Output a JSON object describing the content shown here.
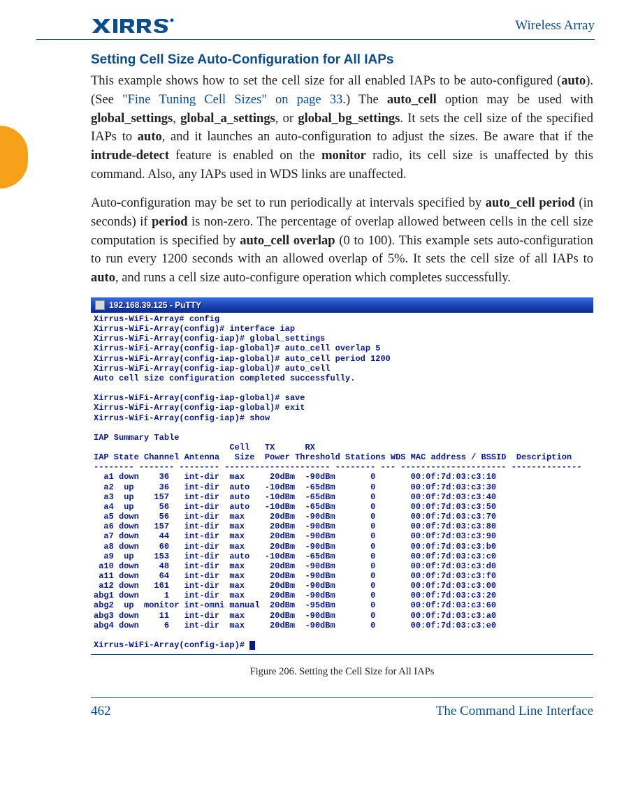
{
  "header": {
    "brand": "XIRRUS",
    "doc_title": "Wireless Array"
  },
  "section": {
    "heading": "Setting Cell Size Auto-Configuration for All IAPs",
    "para1_a": "This example shows how to set the cell size for all enabled IAPs to be auto-configured (",
    "para1_b": "). (See ",
    "para1_link": "\"Fine Tuning Cell Sizes\" on page 33",
    "para1_c": ".) The ",
    "para1_d": " option may be used with ",
    "para1_e": ", ",
    "para1_f": ", or ",
    "para1_g": ". It sets the cell size of the specified IAPs to ",
    "para1_h": ", and it launches an auto-configuration to adjust the sizes. Be aware that if the ",
    "para1_i": " feature is enabled on the ",
    "para1_j": " radio, its cell size is unaffected by this command. Also, any IAPs used in WDS links are unaffected.",
    "bold_auto": "auto",
    "bold_auto_cell": "auto_cell",
    "bold_global": "global_settings",
    "bold_global_a": "global_a_settings",
    "bold_global_bg": "global_bg_settings",
    "bold_intrude": "intrude-detect",
    "bold_monitor": "monitor",
    "para2_a": "Auto-configuration may be set to run periodically at intervals specified by ",
    "para2_b": " (in seconds) if ",
    "para2_c": " is non-zero. The percentage of overlap allowed between cells in the cell size computation is specified by ",
    "para2_d": " (0 to 100). This example sets auto-configuration to run every 1200 seconds with an allowed overlap of 5%. It sets the cell size of all IAPs to ",
    "para2_e": ", and runs a cell size auto-configure operation which completes successfully.",
    "bold_period_full": "auto_cell period",
    "bold_period": "period",
    "bold_overlap": "auto_cell overlap"
  },
  "terminal": {
    "title": "192.168.39.125 - PuTTY",
    "lines_pre": [
      "Xirrus-WiFi-Array# config",
      "Xirrus-WiFi-Array(config)# interface iap",
      "Xirrus-WiFi-Array(config-iap)# global_settings",
      "Xirrus-WiFi-Array(config-iap-global)# auto_cell overlap 5",
      "Xirrus-WiFi-Array(config-iap-global)# auto_cell period 1200",
      "Xirrus-WiFi-Array(config-iap-global)# auto_cell",
      "Auto cell size configuration completed successfully.",
      "",
      "Xirrus-WiFi-Array(config-iap-global)# save",
      "Xirrus-WiFi-Array(config-iap-global)# exit",
      "Xirrus-WiFi-Array(config-iap)# show",
      "",
      "IAP Summary Table",
      "                           Cell   TX      RX",
      "IAP State Channel Antenna   Size  Power Threshold Stations WDS MAC address / BSSID  Description",
      "-------- ------- -------- --------------------- -------- --- --------------------- --------------"
    ],
    "table_rows": [
      {
        "iap": "  a1",
        "state": "down",
        "ch": "   36",
        "ant": "  int-dir",
        "size": " max ",
        "tx": "   20dBm",
        "rx": " -90dBm",
        "st": "      0",
        "mac": "      00:0f:7d:03:c3:10"
      },
      {
        "iap": "  a2",
        "state": " up ",
        "ch": "   36",
        "ant": "  int-dir",
        "size": " auto",
        "tx": "  -10dBm",
        "rx": " -65dBm",
        "st": "      0",
        "mac": "      00:0f:7d:03:c3:30"
      },
      {
        "iap": "  a3",
        "state": " up ",
        "ch": "  157",
        "ant": "  int-dir",
        "size": " auto",
        "tx": "  -10dBm",
        "rx": " -65dBm",
        "st": "      0",
        "mac": "      00:0f:7d:03:c3:40"
      },
      {
        "iap": "  a4",
        "state": " up ",
        "ch": "   56",
        "ant": "  int-dir",
        "size": " auto",
        "tx": "  -10dBm",
        "rx": " -65dBm",
        "st": "      0",
        "mac": "      00:0f:7d:03:c3:50"
      },
      {
        "iap": "  a5",
        "state": "down",
        "ch": "   56",
        "ant": "  int-dir",
        "size": " max ",
        "tx": "   20dBm",
        "rx": " -90dBm",
        "st": "      0",
        "mac": "      00:0f:7d:03:c3:70"
      },
      {
        "iap": "  a6",
        "state": "down",
        "ch": "  157",
        "ant": "  int-dir",
        "size": " max ",
        "tx": "   20dBm",
        "rx": " -90dBm",
        "st": "      0",
        "mac": "      00:0f:7d:03:c3:80"
      },
      {
        "iap": "  a7",
        "state": "down",
        "ch": "   44",
        "ant": "  int-dir",
        "size": " max ",
        "tx": "   20dBm",
        "rx": " -90dBm",
        "st": "      0",
        "mac": "      00:0f:7d:03:c3:90"
      },
      {
        "iap": "  a8",
        "state": "down",
        "ch": "   60",
        "ant": "  int-dir",
        "size": " max ",
        "tx": "   20dBm",
        "rx": " -90dBm",
        "st": "      0",
        "mac": "      00:0f:7d:03:c3:b0"
      },
      {
        "iap": "  a9",
        "state": " up ",
        "ch": "  153",
        "ant": "  int-dir",
        "size": " auto",
        "tx": "  -10dBm",
        "rx": " -65dBm",
        "st": "      0",
        "mac": "      00:0f:7d:03:c3:c0"
      },
      {
        "iap": " a10",
        "state": "down",
        "ch": "   48",
        "ant": "  int-dir",
        "size": " max ",
        "tx": "   20dBm",
        "rx": " -90dBm",
        "st": "      0",
        "mac": "      00:0f:7d:03:c3:d0"
      },
      {
        "iap": " a11",
        "state": "down",
        "ch": "   64",
        "ant": "  int-dir",
        "size": " max ",
        "tx": "   20dBm",
        "rx": " -90dBm",
        "st": "      0",
        "mac": "      00:0f:7d:03:c3:f0"
      },
      {
        "iap": " a12",
        "state": "down",
        "ch": "  161",
        "ant": "  int-dir",
        "size": " max ",
        "tx": "   20dBm",
        "rx": " -90dBm",
        "st": "      0",
        "mac": "      00:0f:7d:03:c3:00"
      },
      {
        "iap": "abg1",
        "state": "down",
        "ch": "    1",
        "ant": "  int-dir",
        "size": " max ",
        "tx": "   20dBm",
        "rx": " -90dBm",
        "st": "      0",
        "mac": "      00:0f:7d:03:c3:20"
      },
      {
        "iap": "abg2",
        "state": " up ",
        " ch": "",
        "ch": "monitor",
        "ant": " int-omni",
        "size": "manual",
        "tx": "  20dBm",
        "rx": " -95dBm",
        "st": "      0",
        "mac": "      00:0f:7d:03:c3:60"
      },
      {
        "iap": "abg3",
        "state": "down",
        "ch": "   11",
        "ant": "  int-dir",
        "size": " max ",
        "tx": "   20dBm",
        "rx": " -90dBm",
        "st": "      0",
        "mac": "      00:0f:7d:03:c3:a0"
      },
      {
        "iap": "abg4",
        "state": "down",
        "ch": "    6",
        "ant": "  int-dir",
        "size": " max ",
        "tx": "   20dBm",
        "rx": " -90dBm",
        "st": "      0",
        "mac": "      00:0f:7d:03:c3:e0"
      }
    ],
    "prompt": "Xirrus-WiFi-Array(config-iap)# "
  },
  "figure_caption": "Figure 206. Setting the Cell Size for All IAPs",
  "footer": {
    "page": "462",
    "title": "The Command Line Interface"
  },
  "colors": {
    "brand_blue": "#0a4d8c",
    "tab_orange": "#f7a11a",
    "terminal_text": "#0a1a8c",
    "titlebar_grad_top": "#3a6bdc",
    "titlebar_grad_bottom": "#0b2a90"
  }
}
